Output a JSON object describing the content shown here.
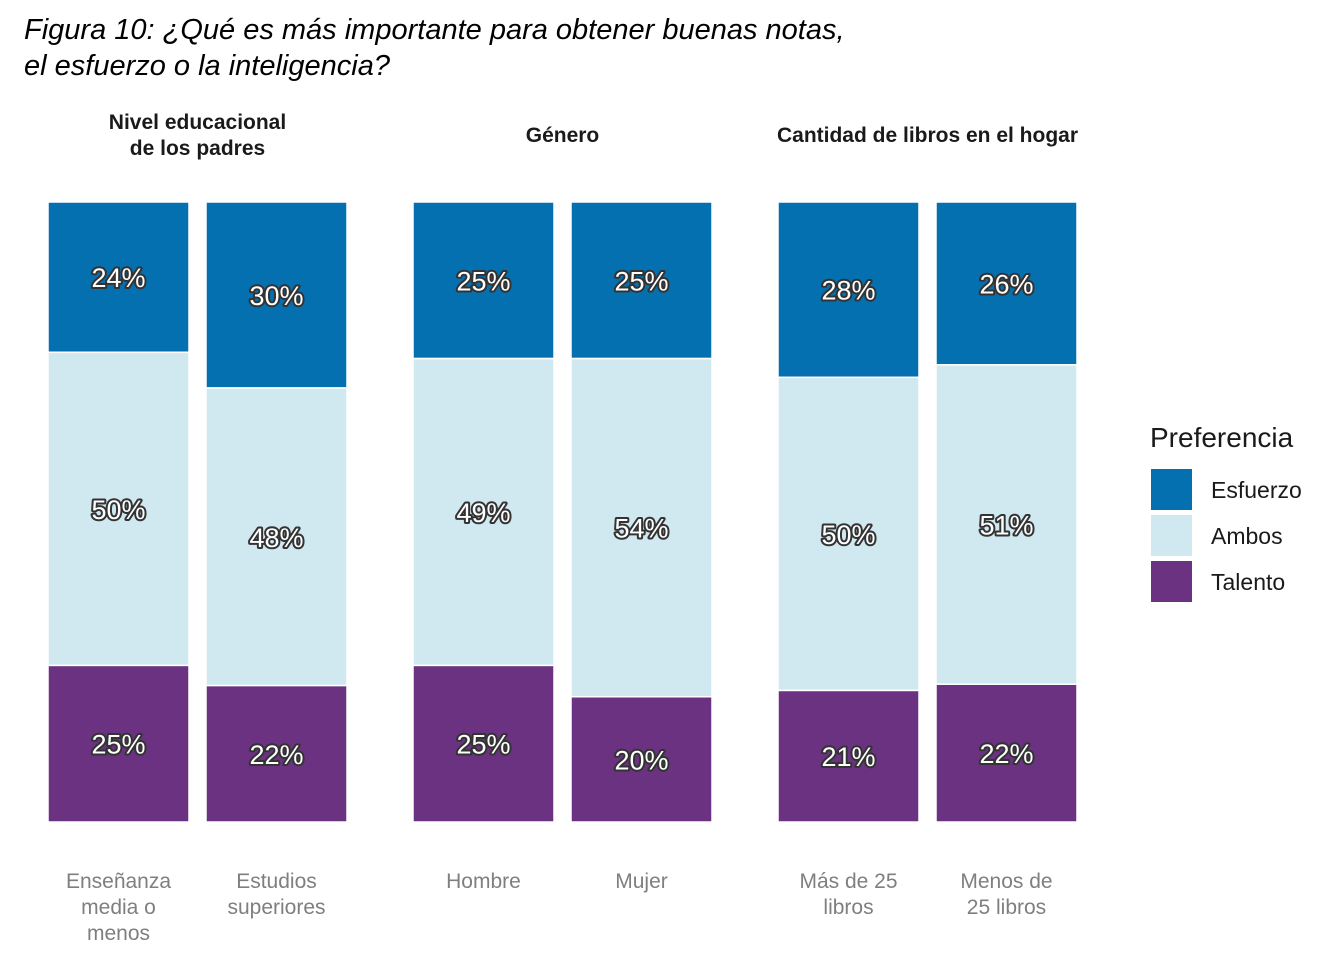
{
  "chart_data": {
    "type": "bar",
    "stacked": true,
    "title_lines": [
      "Figura 10: ¿Qué es más importante para obtener buenas notas,",
      "el esfuerzo o la inteligencia?"
    ],
    "ylim": [
      0,
      100
    ],
    "value_suffix": "%",
    "legend": {
      "title": "Preferencia",
      "position": "right",
      "entries": [
        {
          "key": "esfuerzo",
          "label": "Esfuerzo",
          "color": "#0570b0"
        },
        {
          "key": "ambos",
          "label": "Ambos",
          "color": "#d0e9f0"
        },
        {
          "key": "talento",
          "label": "Talento",
          "color": "#6a3280"
        }
      ]
    },
    "facets": [
      {
        "title_lines": [
          "Nivel educacional",
          "de los padres"
        ],
        "bars": [
          {
            "label_lines": [
              "Enseñanza",
              "media o",
              "menos"
            ],
            "esfuerzo": 24,
            "ambos": 50,
            "talento": 25
          },
          {
            "label_lines": [
              "Estudios",
              "superiores"
            ],
            "esfuerzo": 30,
            "ambos": 48,
            "talento": 22
          }
        ]
      },
      {
        "title_lines": [
          "Género"
        ],
        "bars": [
          {
            "label_lines": [
              "Hombre"
            ],
            "esfuerzo": 25,
            "ambos": 49,
            "talento": 25
          },
          {
            "label_lines": [
              "Mujer"
            ],
            "esfuerzo": 25,
            "ambos": 54,
            "talento": 20
          }
        ]
      },
      {
        "title_lines": [
          "Cantidad de libros en el hogar"
        ],
        "bars": [
          {
            "label_lines": [
              "Más de 25",
              "libros"
            ],
            "esfuerzo": 28,
            "ambos": 50,
            "talento": 21
          },
          {
            "label_lines": [
              "Menos de",
              "25 libros"
            ],
            "esfuerzo": 26,
            "ambos": 51,
            "talento": 22
          }
        ]
      }
    ]
  }
}
